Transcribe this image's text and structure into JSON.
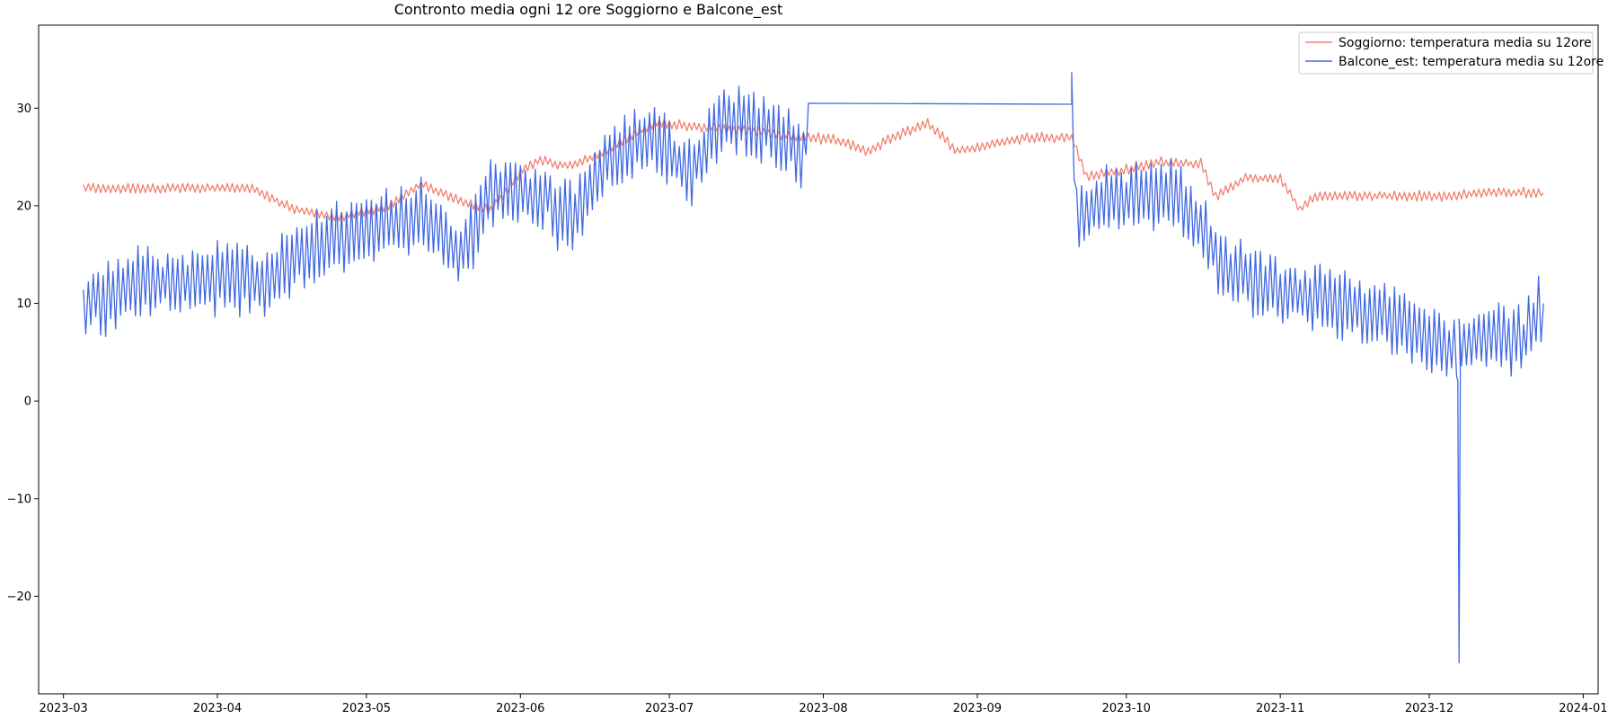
{
  "chart_data": {
    "type": "line",
    "title": "Contronto media ogni 12 ore Soggiorno e Balcone_est",
    "xlabel": "",
    "ylabel": "",
    "x_axis": {
      "type": "date",
      "range": [
        "2023-02-24",
        "2024-01-04"
      ],
      "ticks": [
        "2023-03",
        "2023-04",
        "2023-05",
        "2023-06",
        "2023-07",
        "2023-08",
        "2023-09",
        "2023-10",
        "2023-11",
        "2023-12",
        "2024-01"
      ]
    },
    "y_axis": {
      "range": [
        -30,
        38.5
      ],
      "ticks": [
        -20,
        -10,
        0,
        10,
        20,
        30
      ]
    },
    "grid": false,
    "legend_position": "top-right",
    "series": [
      {
        "name": "Soggiorno: temperatura media su 12ore",
        "color": "#f08070",
        "oscillation": 0.5,
        "points": [
          [
            "2023-03-05",
            21.8
          ],
          [
            "2023-03-20",
            21.8
          ],
          [
            "2023-04-08",
            21.8
          ],
          [
            "2023-04-13",
            20.5
          ],
          [
            "2023-04-17",
            19.6
          ],
          [
            "2023-04-25",
            18.8
          ],
          [
            "2023-05-05",
            19.8
          ],
          [
            "2023-05-12",
            22.3
          ],
          [
            "2023-05-18",
            20.8
          ],
          [
            "2023-05-26",
            19.5
          ],
          [
            "2023-06-01",
            23.5
          ],
          [
            "2023-06-05",
            24.8
          ],
          [
            "2023-06-08",
            24.2
          ],
          [
            "2023-06-12",
            24.2
          ],
          [
            "2023-06-18",
            25.5
          ],
          [
            "2023-06-28",
            28.5
          ],
          [
            "2023-07-10",
            28.0
          ],
          [
            "2023-07-20",
            27.5
          ],
          [
            "2023-07-28",
            27.0
          ],
          [
            "2023-08-03",
            26.8
          ],
          [
            "2023-08-10",
            25.6
          ],
          [
            "2023-08-15",
            27.0
          ],
          [
            "2023-08-22",
            28.5
          ],
          [
            "2023-08-28",
            25.6
          ],
          [
            "2023-09-05",
            26.4
          ],
          [
            "2023-09-11",
            27.0
          ],
          [
            "2023-09-20",
            27.0
          ],
          [
            "2023-09-23",
            23.0
          ],
          [
            "2023-10-02",
            23.8
          ],
          [
            "2023-10-08",
            24.5
          ],
          [
            "2023-10-16",
            24.3
          ],
          [
            "2023-10-19",
            21.0
          ],
          [
            "2023-10-25",
            22.8
          ],
          [
            "2023-11-01",
            22.8
          ],
          [
            "2023-11-05",
            19.6
          ],
          [
            "2023-11-08",
            21.0
          ],
          [
            "2023-11-20",
            21.0
          ],
          [
            "2023-12-05",
            21.0
          ],
          [
            "2023-12-14",
            21.4
          ],
          [
            "2023-12-24",
            21.3
          ]
        ]
      },
      {
        "name": "Balcone_est: temperatura media su 12ore",
        "color": "#4169e1",
        "oscillation": 3.5,
        "points": [
          [
            "2023-03-05",
            9.5
          ],
          [
            "2023-03-15",
            12.0
          ],
          [
            "2023-04-01",
            12.5
          ],
          [
            "2023-04-10",
            12.0
          ],
          [
            "2023-04-20",
            16.0
          ],
          [
            "2023-05-01",
            17.5
          ],
          [
            "2023-05-12",
            19.0
          ],
          [
            "2023-05-20",
            15.0
          ],
          [
            "2023-05-26",
            21.5
          ],
          [
            "2023-06-07",
            21.0
          ],
          [
            "2023-06-08",
            19.4
          ],
          [
            "2023-06-12",
            19.5
          ],
          [
            "2023-06-18",
            24.0
          ],
          [
            "2023-06-28",
            27.5
          ],
          [
            "2023-07-05",
            23.0
          ],
          [
            "2023-07-12",
            29.0
          ],
          [
            "2023-07-20",
            28.0
          ],
          [
            "2023-07-28",
            25.0
          ],
          [
            "2023-07-29",
            30.5
          ],
          [
            "2023-09-20",
            30.4
          ],
          [
            "2023-09-21",
            19.0
          ],
          [
            "2023-10-01",
            21.0
          ],
          [
            "2023-10-10",
            21.5
          ],
          [
            "2023-10-15",
            18.5
          ],
          [
            "2023-10-20",
            14.0
          ],
          [
            "2023-11-01",
            11.0
          ],
          [
            "2023-11-15",
            9.5
          ],
          [
            "2023-11-25",
            8.5
          ],
          [
            "2023-12-04",
            5.0
          ],
          [
            "2023-12-10",
            6.0
          ],
          [
            "2023-12-20",
            6.5
          ],
          [
            "2023-12-24",
            10.0
          ]
        ],
        "spike": {
          "date": "2023-12-07",
          "value": -26.8
        }
      }
    ]
  }
}
